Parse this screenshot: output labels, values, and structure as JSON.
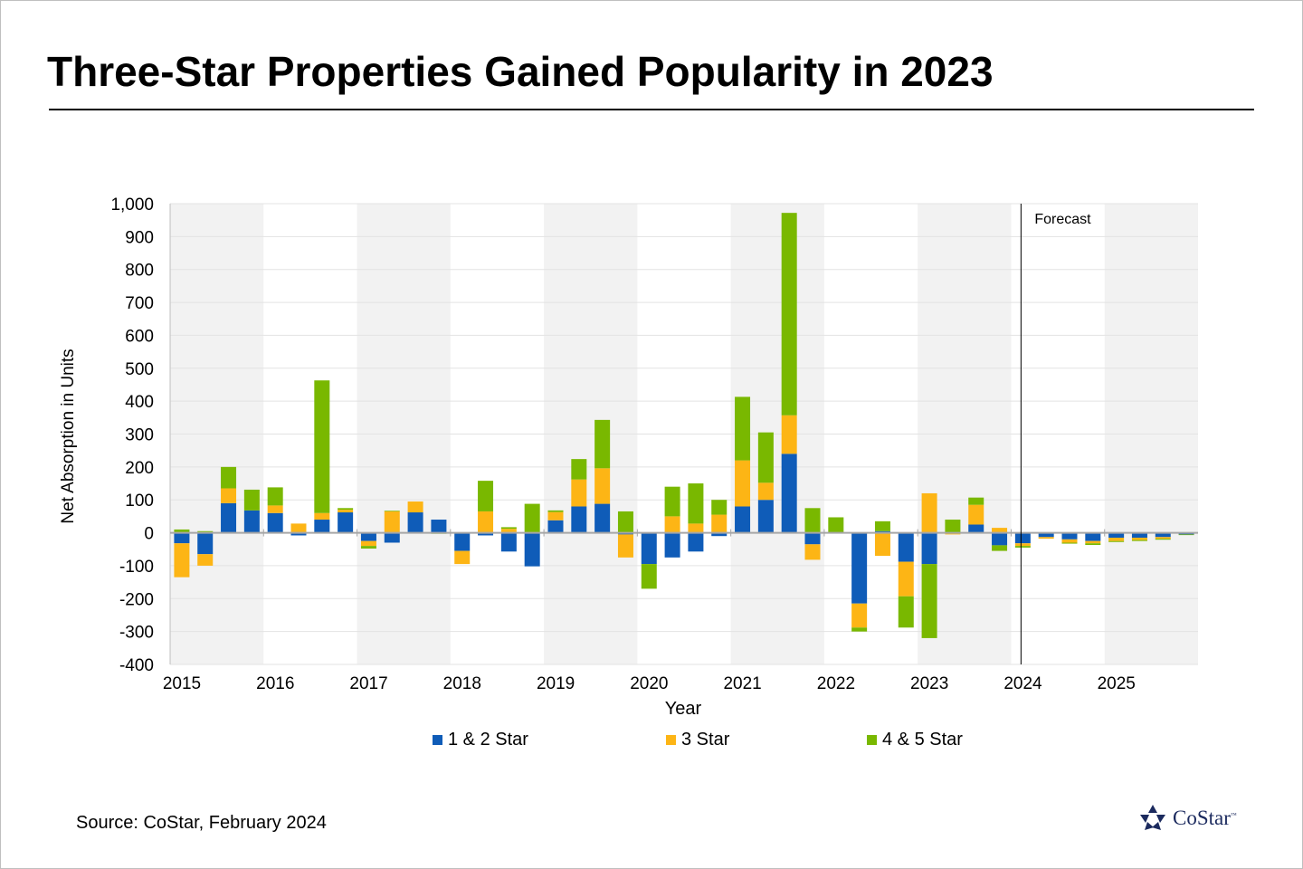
{
  "title": "Three-Star Properties Gained Popularity in 2023",
  "source": "Source: CoStar, February 2024",
  "logo": {
    "text": "CoStar",
    "tm": "™"
  },
  "chart_data": {
    "type": "bar",
    "stacked": true,
    "xlabel": "Year",
    "ylabel": "Net Absorption in Units",
    "ylim": [
      -400,
      1000
    ],
    "yticks": [
      -400,
      -300,
      -200,
      -100,
      0,
      100,
      200,
      300,
      400,
      500,
      600,
      700,
      800,
      900,
      1000
    ],
    "ytick_labels": [
      "-400",
      "-300",
      "-200",
      "-100",
      "0",
      "100",
      "200",
      "300",
      "400",
      "500",
      "600",
      "700",
      "800",
      "900",
      "1,000"
    ],
    "years": [
      "2015",
      "2016",
      "2017",
      "2018",
      "2019",
      "2020",
      "2021",
      "2022",
      "2023",
      "2024",
      "2025"
    ],
    "alternating_year_shading": true,
    "legend_position": "bottom",
    "annotations": [
      {
        "text": "Forecast",
        "x_index": 36
      }
    ],
    "categories": [
      "2015 Q1",
      "2015 Q2",
      "2015 Q3",
      "2015 Q4",
      "2016 Q1",
      "2016 Q2",
      "2016 Q3",
      "2016 Q4",
      "2017 Q1",
      "2017 Q2",
      "2017 Q3",
      "2017 Q4",
      "2018 Q1",
      "2018 Q2",
      "2018 Q3",
      "2018 Q4",
      "2019 Q1",
      "2019 Q2",
      "2019 Q3",
      "2019 Q4",
      "2020 Q1",
      "2020 Q2",
      "2020 Q3",
      "2020 Q4",
      "2021 Q1",
      "2021 Q2",
      "2021 Q3",
      "2021 Q4",
      "2022 Q1",
      "2022 Q2",
      "2022 Q3",
      "2022 Q4",
      "2023 Q1",
      "2023 Q2",
      "2023 Q3",
      "2023 Q4",
      "2024 Q1",
      "2024 Q2",
      "2024 Q3",
      "2024 Q4",
      "2025 Q1",
      "2025 Q2",
      "2025 Q3",
      "2025 Q4"
    ],
    "series": [
      {
        "name": "1 & 2 Star",
        "color": "#0f5cb8",
        "values": [
          -32,
          -65,
          90,
          68,
          60,
          -8,
          40,
          62,
          -25,
          -30,
          62,
          40,
          -55,
          -8,
          -57,
          -102,
          38,
          80,
          88,
          -5,
          -95,
          -75,
          -57,
          -10,
          80,
          100,
          240,
          -35,
          0,
          -215,
          5,
          -88,
          -95,
          0,
          25,
          -38,
          -32,
          -13,
          -20,
          -25,
          -15,
          -15,
          -13,
          -5
        ]
      },
      {
        "name": "3 Star",
        "color": "#fdb515",
        "values": [
          -103,
          -35,
          45,
          0,
          23,
          28,
          20,
          8,
          -15,
          65,
          33,
          0,
          -40,
          65,
          12,
          0,
          25,
          82,
          108,
          -70,
          0,
          50,
          28,
          55,
          140,
          52,
          117,
          -47,
          0,
          -73,
          -70,
          -105,
          120,
          -5,
          60,
          15,
          -8,
          -5,
          -10,
          -7,
          -10,
          -7,
          -5,
          0
        ]
      },
      {
        "name": "4 & 5 Star",
        "color": "#79b800",
        "values": [
          10,
          5,
          65,
          63,
          55,
          0,
          403,
          5,
          -8,
          2,
          0,
          -3,
          0,
          93,
          5,
          88,
          5,
          62,
          147,
          65,
          -75,
          90,
          122,
          45,
          193,
          153,
          615,
          75,
          47,
          -12,
          30,
          -95,
          -225,
          40,
          22,
          -17,
          -5,
          0,
          -3,
          -5,
          -3,
          -3,
          -3,
          -2
        ]
      }
    ]
  }
}
